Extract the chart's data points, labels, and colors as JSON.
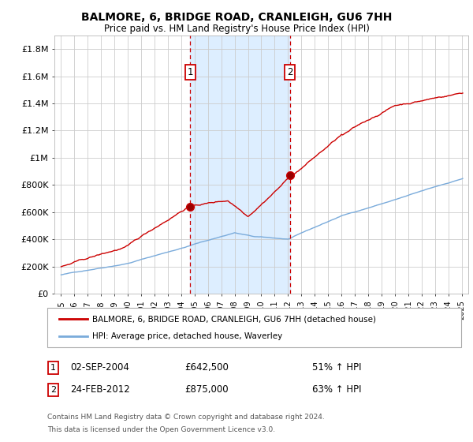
{
  "title": "BALMORE, 6, BRIDGE ROAD, CRANLEIGH, GU6 7HH",
  "subtitle": "Price paid vs. HM Land Registry's House Price Index (HPI)",
  "legend_line1": "BALMORE, 6, BRIDGE ROAD, CRANLEIGH, GU6 7HH (detached house)",
  "legend_line2": "HPI: Average price, detached house, Waverley",
  "sale1_date": "02-SEP-2004",
  "sale1_price": 642500,
  "sale1_x": 2004.67,
  "sale2_date": "24-FEB-2012",
  "sale2_price": 875000,
  "sale2_x": 2012.14,
  "sale1_pct": "51% ↑ HPI",
  "sale2_pct": "63% ↑ HPI",
  "ylim": [
    0,
    1900000
  ],
  "xlim": [
    1994.5,
    2025.5
  ],
  "yticks": [
    0,
    200000,
    400000,
    600000,
    800000,
    1000000,
    1200000,
    1400000,
    1600000,
    1800000
  ],
  "ylabels": [
    "£0",
    "£200K",
    "£400K",
    "£600K",
    "£800K",
    "£1M",
    "£1.2M",
    "£1.4M",
    "£1.6M",
    "£1.8M"
  ],
  "footnote_line1": "Contains HM Land Registry data © Crown copyright and database right 2024.",
  "footnote_line2": "This data is licensed under the Open Government Licence v3.0.",
  "red_color": "#cc0000",
  "blue_color": "#7aabdb",
  "shade_color": "#ddeeff",
  "marker_box_color": "#cc0000",
  "grid_color": "#cccccc",
  "background_color": "#ffffff",
  "sale1_price_str": "£642,500",
  "sale2_price_str": "£875,000"
}
